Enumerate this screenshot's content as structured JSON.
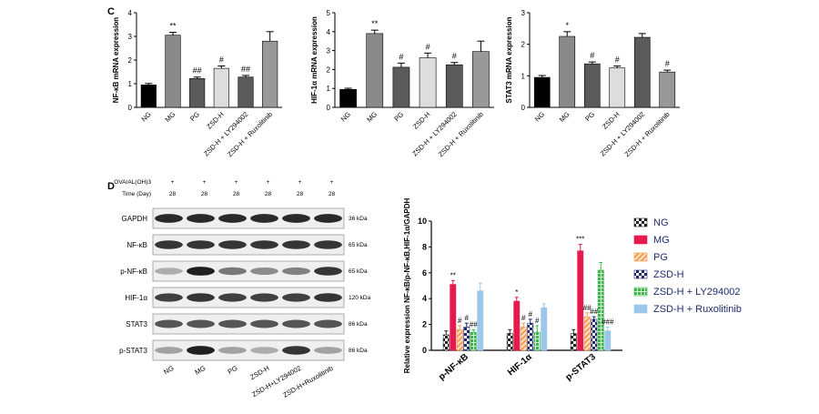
{
  "panel_labels": {
    "c": "C",
    "d": "D"
  },
  "chart_data": [
    {
      "type": "bar",
      "ylabel": "NF-κB mRNA expression",
      "ylim": [
        0,
        4
      ],
      "yticks": [
        0,
        1,
        2,
        3,
        4
      ],
      "categories": [
        "NG",
        "MG",
        "PG",
        "ZSD-H",
        "ZSD-H + LY294002",
        "ZSD-H + Ruxolitinib"
      ],
      "values": [
        0.95,
        3.05,
        1.22,
        1.65,
        1.28,
        2.8
      ],
      "errors": [
        0.06,
        0.12,
        0.06,
        0.1,
        0.07,
        0.4
      ],
      "annotations": [
        "",
        "**",
        "##",
        "#",
        "##",
        ""
      ],
      "colors": [
        "#000000",
        "#8a8a8a",
        "#5a5a5a",
        "#dddddd",
        "#5a5a5a",
        "#999999"
      ]
    },
    {
      "type": "bar",
      "ylabel": "HIF-1α mRNA expression",
      "ylim": [
        0,
        5
      ],
      "yticks": [
        0,
        1,
        2,
        3,
        4,
        5
      ],
      "categories": [
        "NG",
        "MG",
        "PG",
        "ZSD-H",
        "ZSD-H + LY294002",
        "ZSD-H + Ruxolitinib"
      ],
      "values": [
        0.95,
        3.9,
        2.12,
        2.62,
        2.25,
        2.95
      ],
      "errors": [
        0.06,
        0.18,
        0.22,
        0.25,
        0.12,
        0.55
      ],
      "annotations": [
        "",
        "**",
        "#",
        "#",
        "#",
        ""
      ],
      "colors": [
        "#000000",
        "#8a8a8a",
        "#5a5a5a",
        "#dddddd",
        "#5a5a5a",
        "#999999"
      ]
    },
    {
      "type": "bar",
      "ylabel": "STAT3 mRNA expression",
      "ylim": [
        0,
        3
      ],
      "yticks": [
        0,
        1,
        2,
        3
      ],
      "categories": [
        "NG",
        "MG",
        "PG",
        "ZSD-H",
        "ZSD-H + LY294002",
        "ZSD-H + Ruxolitinib"
      ],
      "values": [
        0.95,
        2.25,
        1.38,
        1.25,
        2.22,
        1.12
      ],
      "errors": [
        0.06,
        0.15,
        0.06,
        0.06,
        0.12,
        0.06
      ],
      "annotations": [
        "",
        "*",
        "#",
        "#",
        "",
        "#"
      ],
      "colors": [
        "#000000",
        "#8a8a8a",
        "#5a5a5a",
        "#dddddd",
        "#5a5a5a",
        "#999999"
      ]
    },
    {
      "type": "bar",
      "ylabel": "Relative expression NF-κB/p-NF-κB,HIF-1α/GAPDH",
      "ylim": [
        0,
        10
      ],
      "yticks": [
        0,
        2,
        4,
        6,
        8,
        10
      ],
      "categories": [
        "p-NF-κB",
        "HIF-1α",
        "p-STAT3"
      ],
      "series": [
        {
          "name": "NG",
          "values": [
            1.2,
            1.3,
            1.3
          ],
          "errors": [
            0.3,
            0.3,
            0.3
          ],
          "color": "#222222",
          "pattern": "checker"
        },
        {
          "name": "MG",
          "values": [
            5.1,
            3.8,
            7.7
          ],
          "errors": [
            0.3,
            0.3,
            0.5
          ],
          "color": "#e5194e",
          "pattern": "solid"
        },
        {
          "name": "PG",
          "values": [
            1.6,
            1.8,
            2.6
          ],
          "errors": [
            0.3,
            0.3,
            0.3
          ],
          "color": "#f59a50",
          "pattern": "diagonal"
        },
        {
          "name": "ZSD-H",
          "values": [
            1.8,
            2.1,
            2.4
          ],
          "errors": [
            0.3,
            0.3,
            0.2
          ],
          "color": "#1f2a6e",
          "pattern": "checker"
        },
        {
          "name": "ZSD-H + LY294002",
          "values": [
            1.4,
            1.4,
            6.2
          ],
          "errors": [
            0.2,
            0.5,
            0.6
          ],
          "color": "#3db54a",
          "pattern": "grid"
        },
        {
          "name": "ZSD-H + Ruxolitinib",
          "values": [
            4.6,
            3.3,
            1.5
          ],
          "errors": [
            0.6,
            0.3,
            0.3
          ],
          "color": "#9cc6ea",
          "pattern": "solid"
        }
      ],
      "annotations": [
        [
          "",
          "**",
          "#",
          "#",
          "##",
          ""
        ],
        [
          "",
          "*",
          "#",
          "#",
          "#",
          ""
        ],
        [
          "",
          "***",
          "##",
          "##",
          "",
          "###"
        ]
      ],
      "legend": "right"
    }
  ],
  "blot": {
    "header_rows": [
      {
        "label": "OVA/AL(OH)3",
        "values": [
          "+",
          "+",
          "+",
          "+",
          "+",
          "+"
        ]
      },
      {
        "label": "Time (Day)",
        "values": [
          "28",
          "28",
          "28",
          "28",
          "28",
          "28"
        ]
      }
    ],
    "rows": [
      {
        "name": "GAPDH",
        "kda": "36 kDa",
        "intensity": [
          0.9,
          0.9,
          0.9,
          0.9,
          0.9,
          0.9
        ]
      },
      {
        "name": "NF-κB",
        "kda": "65 kDa",
        "intensity": [
          0.85,
          0.85,
          0.85,
          0.85,
          0.85,
          0.85
        ]
      },
      {
        "name": "p-NF-κB",
        "kda": "65 kDa",
        "intensity": [
          0.3,
          0.95,
          0.55,
          0.45,
          0.5,
          0.85
        ]
      },
      {
        "name": "HIF-1α",
        "kda": "120 kDa",
        "intensity": [
          0.8,
          0.85,
          0.8,
          0.8,
          0.8,
          0.85
        ]
      },
      {
        "name": "STAT3",
        "kda": "86 kDa",
        "intensity": [
          0.7,
          0.7,
          0.7,
          0.7,
          0.7,
          0.7
        ]
      },
      {
        "name": "p-STAT3",
        "kda": "86 kDa",
        "intensity": [
          0.35,
          0.95,
          0.35,
          0.3,
          0.85,
          0.35
        ]
      }
    ],
    "lanes": [
      "NG",
      "MG",
      "PG",
      "ZSD-H",
      "ZSD-H+LY294002",
      "ZSD-H+Ruxolitinib"
    ]
  }
}
